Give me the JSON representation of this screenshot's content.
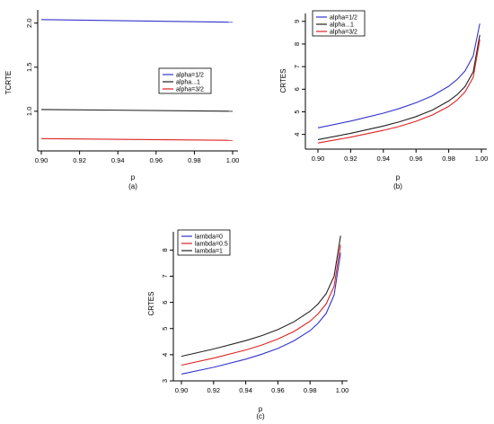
{
  "chart_data": [
    {
      "type": "line",
      "caption": "(a)",
      "xlabel": "p",
      "ylabel": "TCRTE",
      "xlim": [
        0.9,
        1.0
      ],
      "ylim": [
        0.55,
        2.15
      ],
      "xticks": [
        0.9,
        0.92,
        0.94,
        0.96,
        0.98,
        1.0
      ],
      "xtick_labels": [
        "0.90",
        "0.92",
        "0.94",
        "0.96",
        "0.98",
        "1.00"
      ],
      "yticks": [
        1.0,
        1.5,
        2.0
      ],
      "ytick_labels": [
        "1.0",
        "1.5",
        "2.0"
      ],
      "legend_position": "right",
      "series": [
        {
          "name": "alpha=1/2",
          "color": "#3333cc",
          "x": [
            0.9,
            1.0
          ],
          "y": [
            2.04,
            2.01
          ]
        },
        {
          "name": "alpha...1",
          "color": "#222222",
          "x": [
            0.9,
            1.0
          ],
          "y": [
            1.02,
            1.0
          ]
        },
        {
          "name": "alpha=3/2",
          "color": "#dd2222",
          "x": [
            0.9,
            1.0
          ],
          "y": [
            0.69,
            0.67
          ]
        }
      ]
    },
    {
      "type": "line",
      "caption": "(b)",
      "xlabel": "p",
      "ylabel": "CRTES",
      "xlim": [
        0.9,
        1.0
      ],
      "ylim": [
        3.35,
        9.35
      ],
      "xticks": [
        0.9,
        0.92,
        0.94,
        0.96,
        0.98,
        1.0
      ],
      "xtick_labels": [
        "0.90",
        "0.92",
        "0.94",
        "0.96",
        "0.98",
        "1.00"
      ],
      "yticks": [
        4,
        5,
        6,
        7,
        8,
        9
      ],
      "ytick_labels": [
        "4",
        "5",
        "6",
        "7",
        "8",
        "9"
      ],
      "legend_position": "top-left",
      "series": [
        {
          "name": "alpha=1/2",
          "color": "#3333cc",
          "x": [
            0.9,
            0.92,
            0.94,
            0.95,
            0.96,
            0.97,
            0.98,
            0.985,
            0.99,
            0.995,
            0.999
          ],
          "y": [
            4.29,
            4.59,
            4.94,
            5.15,
            5.4,
            5.71,
            6.13,
            6.42,
            6.81,
            7.48,
            8.9
          ]
        },
        {
          "name": "alpha...1",
          "color": "#222222",
          "x": [
            0.9,
            0.92,
            0.94,
            0.95,
            0.96,
            0.97,
            0.98,
            0.985,
            0.99,
            0.995,
            0.999
          ],
          "y": [
            3.77,
            4.05,
            4.37,
            4.56,
            4.79,
            5.08,
            5.48,
            5.75,
            6.12,
            6.77,
            8.4
          ]
        },
        {
          "name": "alpha=3/2",
          "color": "#dd2222",
          "x": [
            0.9,
            0.92,
            0.94,
            0.95,
            0.96,
            0.97,
            0.98,
            0.985,
            0.99,
            0.995,
            0.999
          ],
          "y": [
            3.62,
            3.88,
            4.18,
            4.36,
            4.58,
            4.86,
            5.24,
            5.51,
            5.88,
            6.53,
            8.2
          ]
        }
      ]
    },
    {
      "type": "line",
      "caption": "(c)",
      "xlabel": "p",
      "ylabel": "CRTES",
      "xlim": [
        0.9,
        1.0
      ],
      "ylim": [
        3.0,
        8.7
      ],
      "xticks": [
        0.9,
        0.92,
        0.94,
        0.96,
        0.98,
        1.0
      ],
      "xtick_labels": [
        "0.90",
        "0.92",
        "0.94",
        "0.96",
        "0.98",
        "1.00"
      ],
      "yticks": [
        3,
        4,
        5,
        6,
        7,
        8
      ],
      "ytick_labels": [
        "3",
        "4",
        "5",
        "6",
        "7",
        "8"
      ],
      "legend_position": "top-left",
      "series": [
        {
          "name": "lambda=0",
          "color": "#3333cc",
          "x": [
            0.9,
            0.92,
            0.94,
            0.95,
            0.96,
            0.97,
            0.98,
            0.985,
            0.99,
            0.995,
            0.999
          ],
          "y": [
            3.26,
            3.52,
            3.83,
            4.02,
            4.24,
            4.53,
            4.92,
            5.2,
            5.58,
            6.28,
            7.9
          ]
        },
        {
          "name": "lambda=0.5",
          "color": "#dd2222",
          "x": [
            0.9,
            0.92,
            0.94,
            0.95,
            0.96,
            0.97,
            0.98,
            0.985,
            0.99,
            0.995,
            0.999
          ],
          "y": [
            3.6,
            3.87,
            4.18,
            4.37,
            4.6,
            4.89,
            5.28,
            5.56,
            5.94,
            6.62,
            8.2
          ]
        },
        {
          "name": "lambda=1",
          "color": "#222222",
          "x": [
            0.9,
            0.92,
            0.94,
            0.95,
            0.96,
            0.97,
            0.98,
            0.985,
            0.99,
            0.995,
            0.999
          ],
          "y": [
            3.94,
            4.22,
            4.54,
            4.73,
            4.96,
            5.26,
            5.66,
            5.94,
            6.33,
            7.0,
            8.55
          ]
        }
      ]
    }
  ]
}
